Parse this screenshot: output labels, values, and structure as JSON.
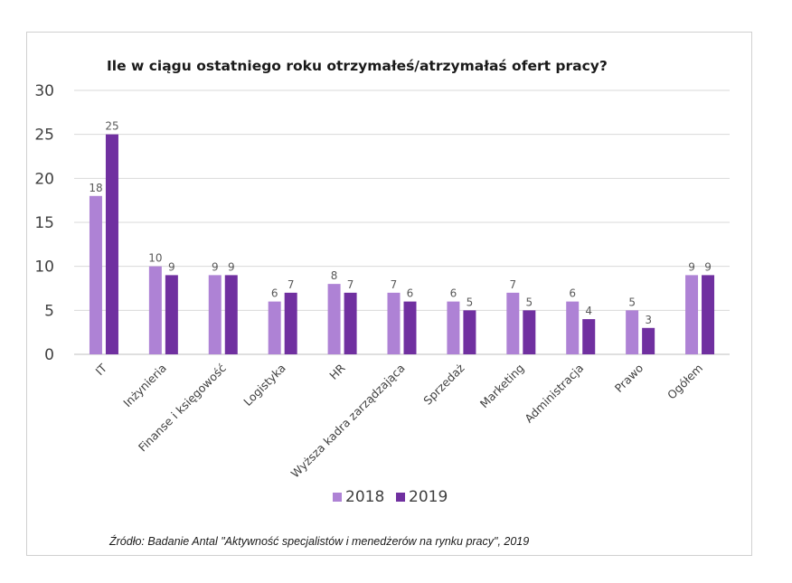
{
  "chart_data": {
    "type": "bar",
    "title": "Ile w ciągu ostatniego roku otrzymałeś/atrzymałaś ofert pracy?",
    "categories": [
      "IT",
      "Inżynieria",
      "Finanse i księgowość",
      "Logistyka",
      "HR",
      "Wyższa kadra zarządzająca",
      "Sprzedaż",
      "Marketing",
      "Administracja",
      "Prawo",
      "Ogółem"
    ],
    "series": [
      {
        "name": "2018",
        "values": [
          18,
          10,
          9,
          6,
          8,
          7,
          6,
          7,
          6,
          5,
          9
        ],
        "color": "#ae82d5"
      },
      {
        "name": "2019",
        "values": [
          25,
          9,
          9,
          7,
          7,
          6,
          5,
          5,
          4,
          3,
          9
        ],
        "color": "#7030a0"
      }
    ],
    "ylim": [
      0,
      30
    ],
    "yticks": [
      "0",
      "5",
      "10",
      "15",
      "20",
      "25",
      "30"
    ],
    "grid": true,
    "legend_position": "bottom",
    "source": "Źródło: Badanie Antal \"Aktywność specjalistów i menedżerów na rynku pracy\", 2019"
  }
}
